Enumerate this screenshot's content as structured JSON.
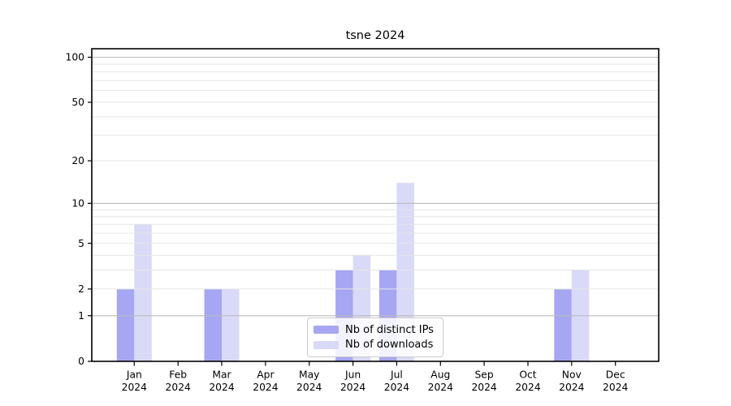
{
  "chart_data": {
    "type": "bar",
    "title": "tsne 2024",
    "categories": [
      "Jan",
      "Feb",
      "Mar",
      "Apr",
      "May",
      "Jun",
      "Jul",
      "Aug",
      "Sep",
      "Oct",
      "Nov",
      "Dec"
    ],
    "category_sublabel": "2024",
    "series": [
      {
        "name": "Nb of distinct IPs",
        "color": "#a6a6f2",
        "values": [
          2,
          0,
          2,
          0,
          0,
          3,
          3,
          0,
          0,
          0,
          2,
          0
        ]
      },
      {
        "name": "Nb of downloads",
        "color": "#d9d9f8",
        "values": [
          7,
          0,
          2,
          0,
          0,
          4,
          14,
          0,
          0,
          0,
          3,
          0
        ]
      }
    ],
    "yscale": "log1p",
    "yticks_labeled": [
      0,
      1,
      2,
      5,
      10,
      20,
      50,
      100
    ],
    "ygrid_major": [
      1,
      10,
      100
    ],
    "ygrid_minor": [
      2,
      3,
      4,
      5,
      6,
      7,
      8,
      9,
      20,
      30,
      40,
      50,
      60,
      70,
      80,
      90
    ],
    "ylim": [
      0,
      114
    ],
    "xlabel": "",
    "ylabel": "",
    "grid": true,
    "legend_position": "lower center inside"
  }
}
